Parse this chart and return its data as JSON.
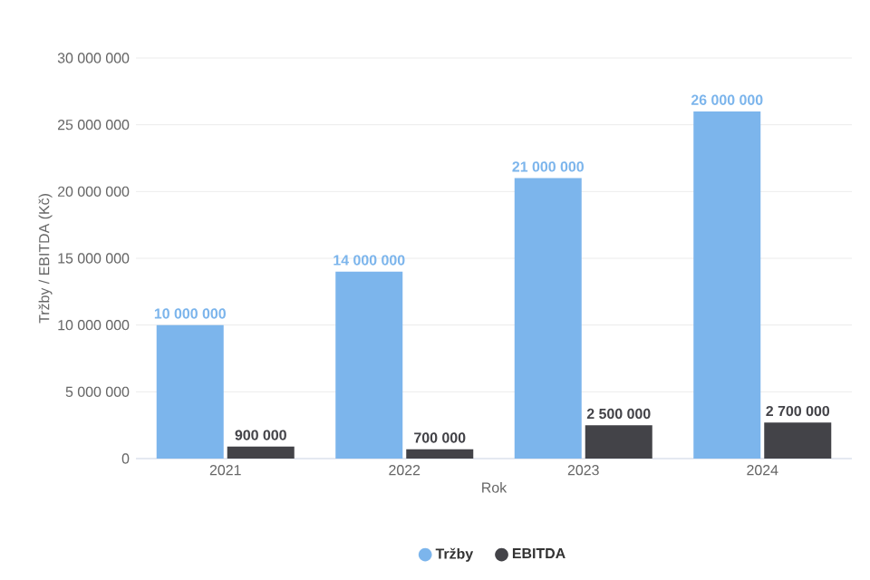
{
  "chart_data": {
    "type": "bar",
    "xlabel": "Rok",
    "ylabel": "Tržby / EBITDA (Kč)",
    "categories": [
      "2021",
      "2022",
      "2023",
      "2024"
    ],
    "series": [
      {
        "name": "Tržby",
        "color": "#7cb5ec",
        "values": [
          10000000,
          14000000,
          21000000,
          26000000
        ],
        "value_labels": [
          "10 000 000",
          "14 000 000",
          "21 000 000",
          "26 000 000"
        ]
      },
      {
        "name": "EBITDA",
        "color": "#434348",
        "values": [
          900000,
          700000,
          2500000,
          2700000
        ],
        "value_labels": [
          "900 000",
          "700 000",
          "2 500 000",
          "2 700 000"
        ]
      }
    ],
    "ylim": [
      0,
      30000000
    ],
    "yticks": [
      {
        "value": 0,
        "label": "0"
      },
      {
        "value": 5000000,
        "label": "5 000 000"
      },
      {
        "value": 10000000,
        "label": "10 000 000"
      },
      {
        "value": 15000000,
        "label": "15 000 000"
      },
      {
        "value": 20000000,
        "label": "20 000 000"
      },
      {
        "value": 25000000,
        "label": "25 000 000"
      },
      {
        "value": 30000000,
        "label": "30 000 000"
      }
    ],
    "grid": "y",
    "legend": "bottom"
  }
}
